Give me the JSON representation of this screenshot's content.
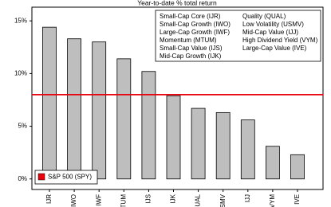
{
  "chart_data": {
    "type": "bar",
    "title": "Year-to-date % total return",
    "categories": [
      "IJR",
      "IWO",
      "IWF",
      "TUM",
      "IJS",
      "IJK",
      "QUAL",
      "SMV",
      "IJJ",
      "VYM",
      "IVE"
    ],
    "values": [
      14.4,
      13.3,
      13.0,
      11.4,
      10.2,
      7.9,
      6.7,
      6.3,
      5.6,
      3.1,
      2.3
    ],
    "color": "#bebebe",
    "ylim": [
      -1,
      16.3
    ],
    "yticks": [
      {
        "value": 0,
        "label": "0%"
      },
      {
        "value": 5,
        "label": "5%"
      },
      {
        "value": 10,
        "label": "10%"
      },
      {
        "value": 15,
        "label": "15%"
      }
    ],
    "reference_line": {
      "name": "S&P 500 (SPY)",
      "value": 8,
      "color": "#e8000b"
    },
    "notes": [
      "Small-Cap Core (IJR)",
      "Small-Cap Growth (IWO)",
      "Large-Cap Growth (IWF)",
      "Momentum (MTUM)",
      "Small-Cap Value (IJS)",
      "Mid-Cap Growth (IJK)",
      "Quality (QUAL)",
      "Low Volatility (USMV)",
      "Mid-Cap Value (IJJ)",
      "High Dividend Yield (VYM)",
      "Large-Cap Value (IVE)"
    ]
  }
}
